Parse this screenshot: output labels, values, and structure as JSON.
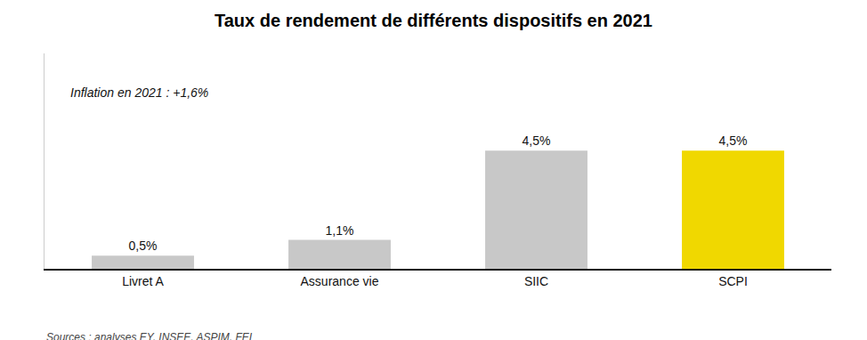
{
  "chart_data": {
    "type": "bar",
    "title": "Taux de rendement de différents dispositifs en 2021",
    "categories": [
      "Livret A",
      "Assurance vie",
      "SIIC",
      "SCPI"
    ],
    "values": [
      0.5,
      1.1,
      4.5,
      4.5
    ],
    "value_labels": [
      "0,5%",
      "1,1%",
      "4,5%",
      "4,5%"
    ],
    "colors": [
      "#c8c8c8",
      "#c8c8c8",
      "#c8c8c8",
      "#f0d800"
    ],
    "ylim": [
      0,
      8.2
    ],
    "grid": false,
    "data_labels": true,
    "tick_labels": "x",
    "annotations": [
      "Inflation en 2021 : +1,6%",
      "Sources : analyses EY, INSEE, ASPIM, FEI"
    ]
  }
}
